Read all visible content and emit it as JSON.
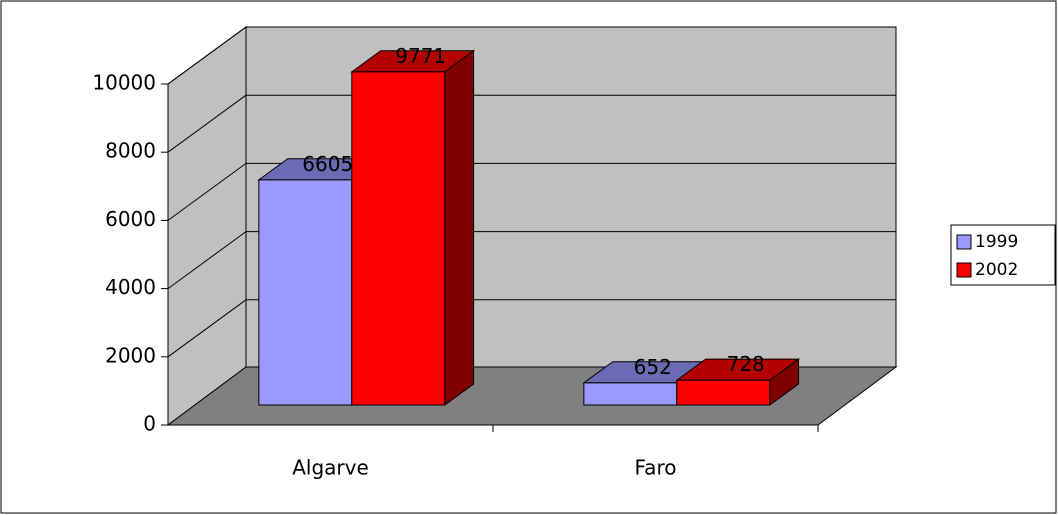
{
  "chart_data": {
    "type": "bar3d",
    "categories": [
      "Algarve",
      "Faro"
    ],
    "series": [
      {
        "name": "1999",
        "color": "#9999ff",
        "values": [
          6605,
          652
        ]
      },
      {
        "name": "2002",
        "color": "#ff0000",
        "values": [
          9771,
          728
        ]
      }
    ],
    "ylim": [
      0,
      10000
    ],
    "yticks": [
      0,
      2000,
      4000,
      6000,
      8000,
      10000
    ],
    "grid": true,
    "legend": "right"
  }
}
